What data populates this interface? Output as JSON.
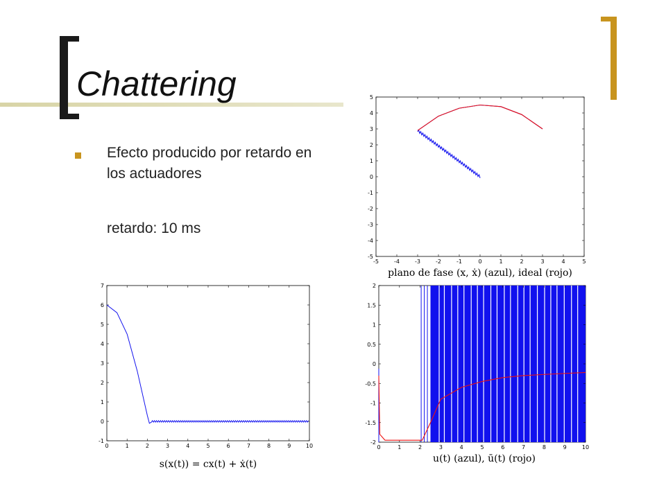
{
  "slide": {
    "title": "Chattering",
    "bullet": "Efecto producido por retardo en los actuadores",
    "note": "retardo: 10 ms",
    "colors": {
      "accent": "#c8941e",
      "blue": "#1111ee",
      "red": "#ee1111"
    }
  },
  "chart_data": [
    {
      "type": "line",
      "xlim": [
        -5,
        5
      ],
      "ylim": [
        -5,
        5
      ],
      "xticks": [
        "-5",
        "-4",
        "-3",
        "-2",
        "-1",
        "0",
        "1",
        "2",
        "3",
        "4",
        "5"
      ],
      "yticks": [
        "5",
        "4",
        "3",
        "2",
        "1",
        "0",
        "-1",
        "-2",
        "-3",
        "-4",
        "-5"
      ],
      "caption": "plano de fase (x, ẋ) (azul), ideal (rojo)",
      "series": [
        {
          "color": "blue",
          "x": [
            0,
            -3,
            -2,
            -1,
            0,
            1,
            2,
            3
          ],
          "y": [
            0,
            2.9,
            3.8,
            4.3,
            4.5,
            4.4,
            3.9,
            3.0
          ]
        },
        {
          "color": "red",
          "x": [
            -3,
            -2,
            -1,
            0,
            1,
            2,
            3
          ],
          "y": [
            2.9,
            3.8,
            4.3,
            4.5,
            4.4,
            3.9,
            3.0
          ]
        }
      ]
    },
    {
      "type": "line",
      "xlim": [
        0,
        10
      ],
      "ylim": [
        -1,
        7
      ],
      "xticks": [
        "0",
        "1",
        "2",
        "3",
        "4",
        "5",
        "6",
        "7",
        "8",
        "9",
        "10"
      ],
      "yticks": [
        "7",
        "6",
        "5",
        "4",
        "3",
        "2",
        "1",
        "0",
        "-1"
      ],
      "caption": "s(x(t)) = cx(t) + ẋ(t)",
      "series": [
        {
          "color": "blue",
          "x": [
            0,
            0.5,
            1.0,
            1.5,
            2.0,
            2.1,
            10
          ],
          "y": [
            6.0,
            5.6,
            4.5,
            2.6,
            0.3,
            -0.1,
            0.0
          ]
        }
      ]
    },
    {
      "type": "line",
      "xlim": [
        0,
        10
      ],
      "ylim": [
        -2,
        2
      ],
      "xticks": [
        "0",
        "1",
        "2",
        "3",
        "4",
        "5",
        "6",
        "7",
        "8",
        "9",
        "10"
      ],
      "yticks": [
        "2",
        "1.5",
        "1",
        "0.5",
        "0",
        "-0.5",
        "-1",
        "-1.5",
        "-2"
      ],
      "caption": "u(t) (azul), ū(t) (rojo)",
      "series": [
        {
          "color": "blue",
          "description_pattern": "switching",
          "x": [
            0,
            2,
            10
          ],
          "y": [
            -2,
            2,
            -2
          ]
        },
        {
          "color": "red",
          "x": [
            0,
            0.05,
            0.3,
            2.1,
            2.5,
            3,
            4,
            5,
            6,
            7,
            8,
            10
          ],
          "y": [
            -0.3,
            -1.8,
            -1.95,
            -1.95,
            -1.5,
            -0.9,
            -0.6,
            -0.45,
            -0.35,
            -0.3,
            -0.27,
            -0.22
          ]
        }
      ]
    }
  ]
}
